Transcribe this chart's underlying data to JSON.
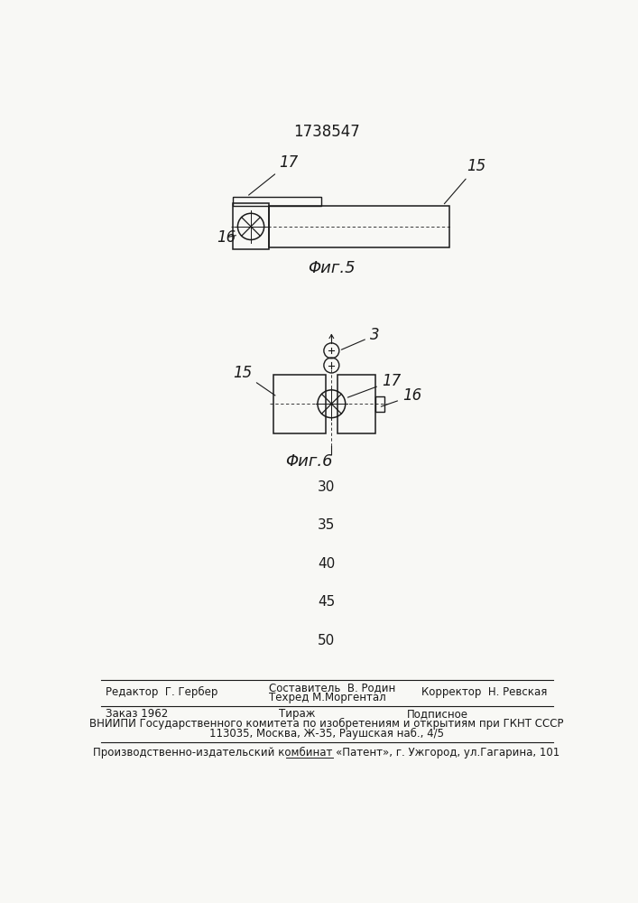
{
  "title": "1738547",
  "fig5_label": "Φиг.5",
  "fig6_label": "Φиг.6",
  "page_numbers": [
    "30",
    "35",
    "40",
    "45",
    "50"
  ],
  "page_y": [
    455,
    400,
    345,
    290,
    235
  ],
  "editor_line": "Редактор  Г. Гербер",
  "composer_line": "Составитель  В. Родин",
  "techred_line": "Техред М.Моргентал",
  "corrector_line": "Корректор  Н. Ревская",
  "order_line": "Заказ 1962",
  "tirazh_line": "Тираж",
  "podpisnoe_line": "Подписное",
  "vniip_line": "ВНИИПИ Государственного комитета по изобретениям и открытиям при ГКНТ СССР",
  "addr_line": "113035, Москва, Ж-35, Раушская наб., 4/5",
  "factory_line": "Производственно-издательский комбинат «Патент», г. Ужгород, ул.Гагарина, 101",
  "bg_color": "#f8f8f5",
  "line_color": "#1a1a1a",
  "text_color": "#1a1a1a"
}
